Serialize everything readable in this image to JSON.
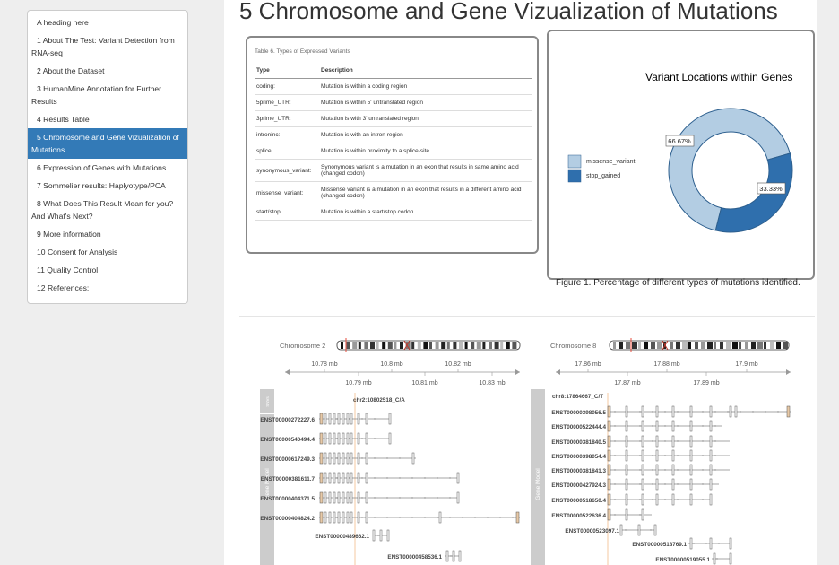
{
  "toc": {
    "items": [
      {
        "label": "A heading here",
        "active": false
      },
      {
        "label": "1 About The Test: Variant Detection from RNA-seq",
        "active": false
      },
      {
        "label": "2 About the Dataset",
        "active": false
      },
      {
        "label": "3 HumanMine Annotation for Further Results",
        "active": false
      },
      {
        "label": "4 Results Table",
        "active": false
      },
      {
        "label": "5 Chromosome and Gene Vizualization of Mutations",
        "active": true
      },
      {
        "label": "6 Expression of Genes with Mutations",
        "active": false
      },
      {
        "label": "7 Sommelier results: Haplyotype/PCA",
        "active": false
      },
      {
        "label": "8 What Does This Result Mean for you? And What's Next?",
        "active": false
      },
      {
        "label": "9 More information",
        "active": false
      },
      {
        "label": "10 Consent for Analysis",
        "active": false
      },
      {
        "label": "11 Quality Control",
        "active": false
      },
      {
        "label": "12 References:",
        "active": false
      }
    ]
  },
  "main": {
    "title": "5 Chromosome and Gene Vizualization of Mutations"
  },
  "table": {
    "caption": "Table 6. Types of Expressed Variants",
    "headers": {
      "type": "Type",
      "description": "Description"
    },
    "rows": [
      {
        "type": "coding:",
        "description": "Mutation is within a coding region"
      },
      {
        "type": "5prime_UTR:",
        "description": "Mutation is within 5' untranslated region"
      },
      {
        "type": "3prime_UTR:",
        "description": "Mutation is with 3' untranslated region"
      },
      {
        "type": "introninc:",
        "description": "Mutation is with an intron region"
      },
      {
        "type": "splice:",
        "description": "Mutation is within proximity to a splice-site."
      },
      {
        "type": "synonymous_variant:",
        "description": "Synonymous variant is a mutation in an exon that results in same amino acid (changed codon)"
      },
      {
        "type": "missense_variant:",
        "description": "Missense variant is a mutation in an exon that results in a different amino acid (changed codon)"
      },
      {
        "type": "start/stop:",
        "description": "Mutation is within a start/stop codon."
      }
    ]
  },
  "chart_data": {
    "type": "pie",
    "title": "Variant Locations within Genes",
    "caption": "Figure 1. Percentage of different types of mutations identified.",
    "categories": [
      "missense_variant",
      "stop_gained"
    ],
    "values": [
      66.67,
      33.33
    ],
    "labels": [
      "66.67%",
      "33.33%"
    ],
    "colors": [
      "#b3cde3",
      "#2f6fad"
    ],
    "legend_position": "left"
  },
  "genome": {
    "left": {
      "chromosome": "Chromosome 2",
      "ruler_top": [
        "10.78 mb",
        "10.8 mb",
        "10.82 mb"
      ],
      "ruler_bottom": [
        "10.79 mb",
        "10.81 mb",
        "10.83 mb"
      ],
      "variant": "chr2:10802518_C/A",
      "track_label_small": "SNVs",
      "track_label": "Gene Model",
      "transcripts": [
        "ENST00000272227.6",
        "ENST00000540494.4",
        "ENST00000617249.3",
        "ENST00000381611.7",
        "ENST00000404371.5",
        "ENST00000404824.2",
        "ENST00000489662.1",
        "ENST00000458536.1"
      ]
    },
    "right": {
      "chromosome": "Chromosome 8",
      "ruler_top": [
        "17.86 mb",
        "17.88 mb",
        "17.9 mb"
      ],
      "ruler_bottom": [
        "17.87 mb",
        "17.89 mb"
      ],
      "variant": "chr8:17864667_C/T",
      "track_label": "Gene Model",
      "transcripts": [
        "ENST00000398056.5",
        "ENST00000522444.4",
        "ENST00000381840.5",
        "ENST00000398054.4",
        "ENST00000381841.3",
        "ENST00000427924.3",
        "ENST00000518650.4",
        "ENST00000522636.4",
        "ENST00000523097.1",
        "ENST00000518769.1",
        "ENST00000519055.1"
      ]
    }
  }
}
